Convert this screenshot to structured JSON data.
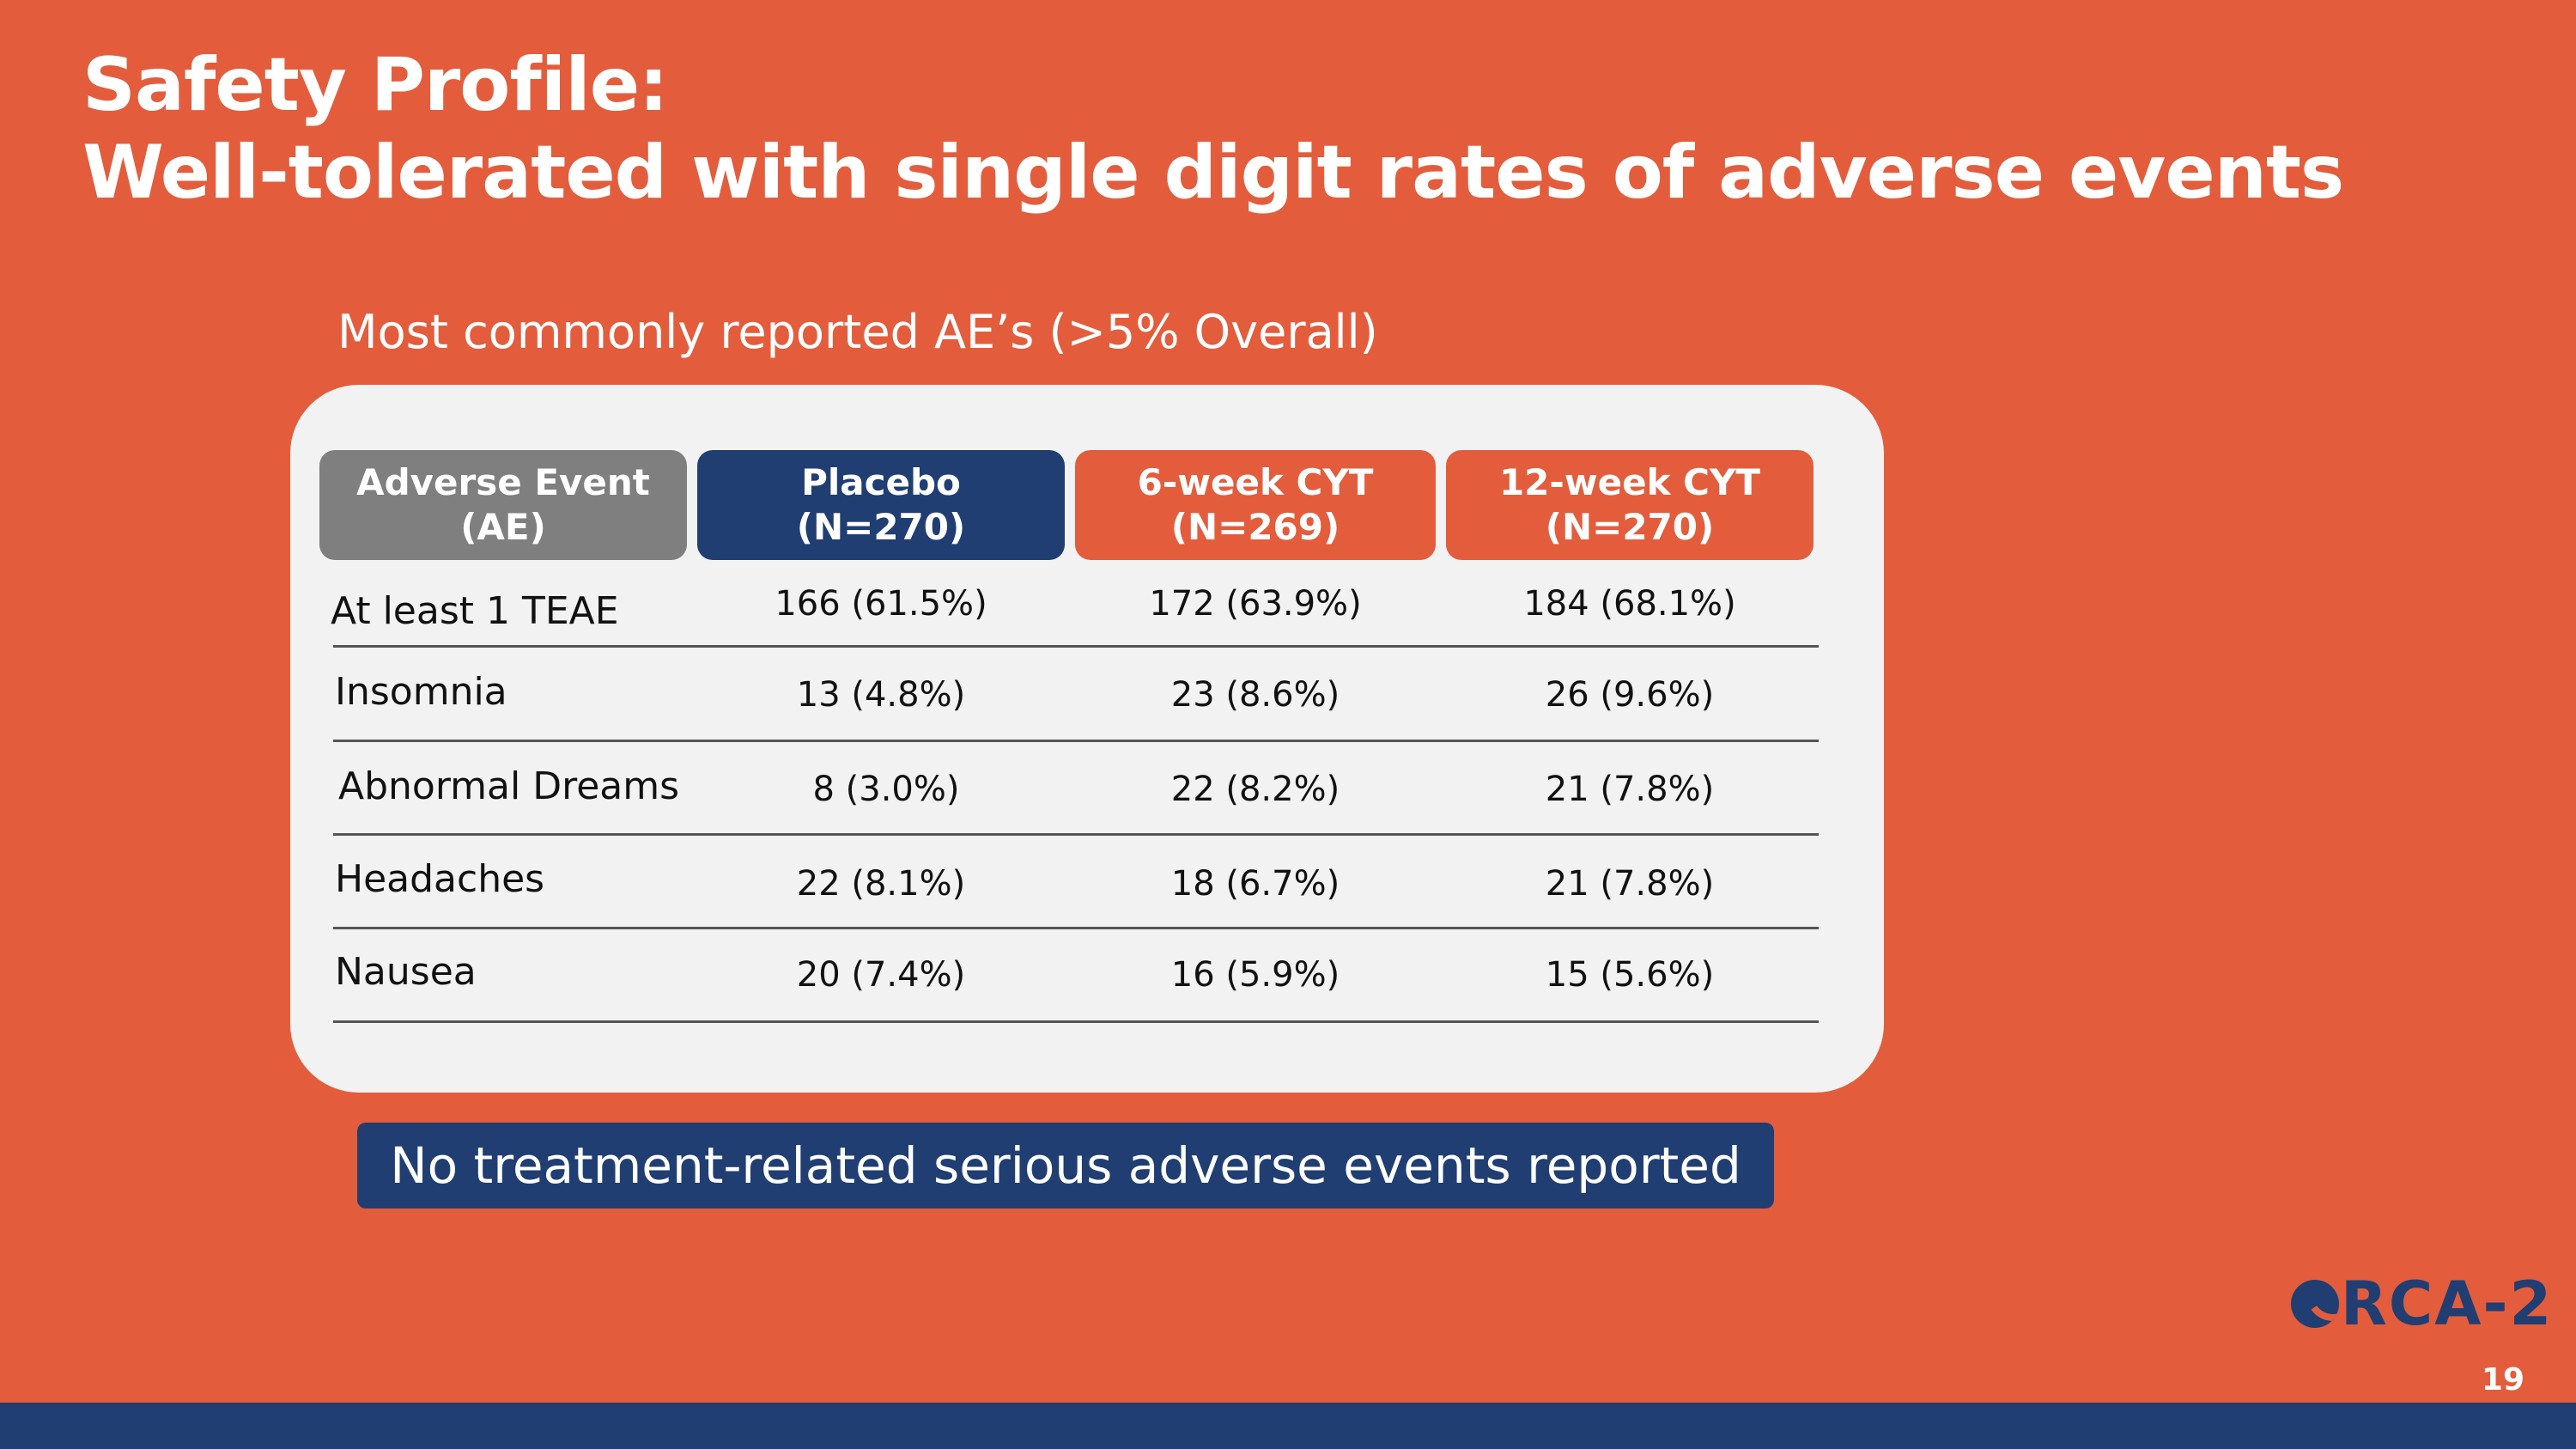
{
  "slide": {
    "title_line1": "Safety Profile:",
    "title_line2": "Well-tolerated with single digit rates of adverse events",
    "subtitle": "Most commonly reported AE’s (>5% Overall)",
    "banner": "No treatment-related serious adverse events reported",
    "logo_text": "RCA-2",
    "page_number": "19"
  },
  "table": {
    "headers": {
      "ae": "Adverse Event (AE)",
      "placebo_l1": "Placebo",
      "placebo_l2": "(N=270)",
      "wk6_l1": "6-week CYT",
      "wk6_l2": "(N=269)",
      "wk12_l1": "12-week CYT",
      "wk12_l2": "(N=270)"
    },
    "rows": [
      {
        "name": "At least 1 TEAE",
        "placebo": "166 (61.5%)",
        "wk6": "172 (63.9%)",
        "wk12": "184 (68.1%)"
      },
      {
        "name": "Insomnia",
        "placebo": "13 (4.8%)",
        "wk6": "23 (8.6%)",
        "wk12": "26 (9.6%)"
      },
      {
        "name": "Abnormal Dreams",
        "placebo": "8 (3.0%)",
        "wk6": "22 (8.2%)",
        "wk12": "21 (7.8%)"
      },
      {
        "name": "Headaches",
        "placebo": "22 (8.1%)",
        "wk6": "18 (6.7%)",
        "wk12": "21 (7.8%)"
      },
      {
        "name": "Nausea",
        "placebo": "20 (7.4%)",
        "wk6": "16 (5.9%)",
        "wk12": "15 (5.6%)"
      }
    ]
  },
  "colors": {
    "background": "#E35D3D",
    "navy": "#203E72",
    "gray_header": "#7F7F7F",
    "panel": "#F2F2F2"
  }
}
